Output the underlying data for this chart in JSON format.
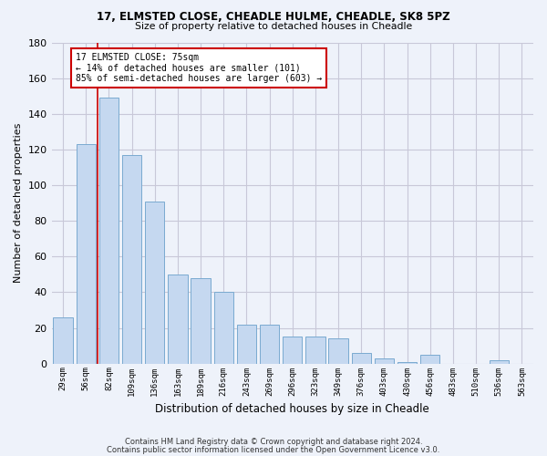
{
  "title1": "17, ELMSTED CLOSE, CHEADLE HULME, CHEADLE, SK8 5PZ",
  "title2": "Size of property relative to detached houses in Cheadle",
  "xlabel": "Distribution of detached houses by size in Cheadle",
  "ylabel": "Number of detached properties",
  "categories": [
    "29sqm",
    "56sqm",
    "82sqm",
    "109sqm",
    "136sqm",
    "163sqm",
    "189sqm",
    "216sqm",
    "243sqm",
    "269sqm",
    "296sqm",
    "323sqm",
    "349sqm",
    "376sqm",
    "403sqm",
    "430sqm",
    "456sqm",
    "483sqm",
    "510sqm",
    "536sqm",
    "563sqm"
  ],
  "values": [
    26,
    123,
    149,
    117,
    91,
    50,
    48,
    40,
    22,
    22,
    15,
    15,
    14,
    6,
    3,
    1,
    5,
    0,
    0,
    2,
    0
  ],
  "bar_color": "#c5d8f0",
  "bar_edge_color": "#7aaad0",
  "grid_color": "#c8c8d8",
  "vline_color": "#cc0000",
  "annotation_text": "17 ELMSTED CLOSE: 75sqm\n← 14% of detached houses are smaller (101)\n85% of semi-detached houses are larger (603) →",
  "annotation_box_color": "#ffffff",
  "annotation_box_edge": "#cc0000",
  "ylim": [
    0,
    180
  ],
  "yticks": [
    0,
    20,
    40,
    60,
    80,
    100,
    120,
    140,
    160,
    180
  ],
  "footer1": "Contains HM Land Registry data © Crown copyright and database right 2024.",
  "footer2": "Contains public sector information licensed under the Open Government Licence v3.0.",
  "bg_color": "#eef2fa"
}
